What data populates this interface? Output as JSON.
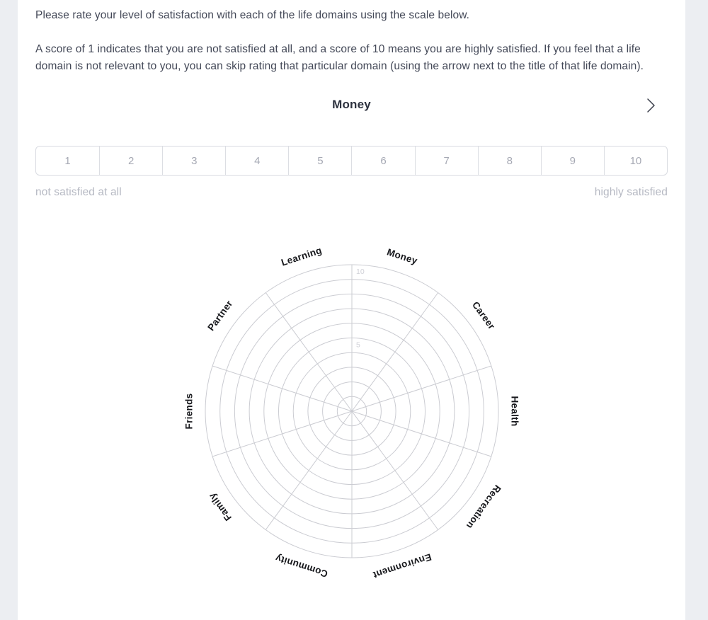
{
  "instructions": {
    "paragraph1": "Please rate your level of satisfaction with each of the life domains using the scale below.",
    "paragraph2": "A score of 1 indicates that you are not satisfied at all, and a score of 10 means you are highly satisfied. If you feel that a life domain is not relevant to you, you can skip rating that particular domain (using the arrow next to the title of that life domain)."
  },
  "question": {
    "domain_title": "Money"
  },
  "scale": {
    "options": [
      "1",
      "2",
      "3",
      "4",
      "5",
      "6",
      "7",
      "8",
      "9",
      "10"
    ],
    "min_label": "not satisfied at all",
    "max_label": "highly satisfied"
  },
  "chart_data": {
    "type": "radar",
    "domains_clockwise_from_top": [
      "Money",
      "Career",
      "Health",
      "Recreation",
      "Environment",
      "Community",
      "Family",
      "Friends",
      "Partner",
      "Learning"
    ],
    "rings": 10,
    "axis_range": [
      0,
      10
    ],
    "ring_tick_labels": [
      {
        "value": 5,
        "label": "5"
      },
      {
        "value": 10,
        "label": "10"
      }
    ],
    "series": [],
    "grid": true,
    "legend": false
  },
  "colors": {
    "page_background": "#eceef2",
    "card_background": "#ffffff",
    "body_text": "#434857",
    "title_text": "#2d323f",
    "muted_text": "#b6b9c3",
    "scale_number": "#a6a9b4",
    "scale_border": "#d9dbe1",
    "grid_line": "#cbccd2",
    "ring_tick_text": "#d0d1d7",
    "chart_label_text": "#17181c",
    "chevron": "#3a3e4a"
  }
}
